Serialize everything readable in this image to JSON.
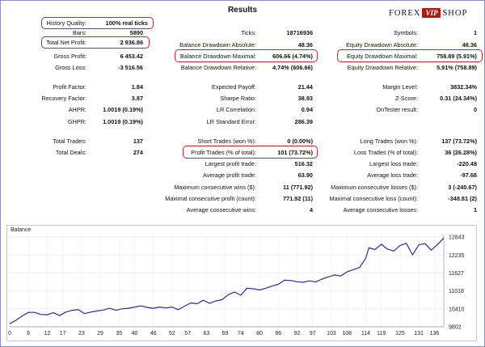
{
  "title": "Results",
  "logo": {
    "left": "FOREX",
    "badge": "VIP",
    "right": "SHOP"
  },
  "stats": [
    {
      "label": "History Quality:",
      "value": "100% real ticks"
    },
    {
      "label": "Bars:",
      "value": "5890"
    },
    {
      "label": "Total Net Profit:",
      "value": "2 936.86"
    },
    {
      "label": "Gross Profit:",
      "value": "6 453.42"
    },
    {
      "label": "Gross Loss:",
      "value": "-3 516.56"
    },
    {
      "label": "Ticks:",
      "value": "18716936"
    },
    {
      "label": "Balance Drawdown Absolute:",
      "value": "48.36"
    },
    {
      "label": "Balance Drawdown Maximal:",
      "value": "606.66 (4.74%)"
    },
    {
      "label": "Balance Drawdown Relative:",
      "value": "4.74% (606.66)"
    },
    {
      "label": "Symbols:",
      "value": "1"
    },
    {
      "label": "Equity Drawdown Absolute:",
      "value": "48.36"
    },
    {
      "label": "Equity Drawdown Maximal:",
      "value": "758.89 (5.91%)"
    },
    {
      "label": "Equity Drawdown Relative:",
      "value": "5.91% (758.89)"
    },
    {
      "label": "Profit Factor:",
      "value": "1.84"
    },
    {
      "label": "Recovery Factor:",
      "value": "3.87"
    },
    {
      "label": "AHPR:",
      "value": "1.0019 (0.19%)"
    },
    {
      "label": "GHPR:",
      "value": "1.0019 (0.19%)"
    },
    {
      "label": "Expected Payoff:",
      "value": "21.44"
    },
    {
      "label": "Sharpe Ratio:",
      "value": "38.93"
    },
    {
      "label": "LR Correlation:",
      "value": "0.94"
    },
    {
      "label": "LR Standard Error:",
      "value": "286.39"
    },
    {
      "label": "Margin Level:",
      "value": "3832.34%"
    },
    {
      "label": "Z-Score:",
      "value": "0.31 (24.34%)"
    },
    {
      "label": "OnTester result:",
      "value": "0"
    },
    {
      "label": "Total Trades:",
      "value": "137"
    },
    {
      "label": "Total Deals:",
      "value": "274"
    },
    {
      "label": "Short Trades (won %):",
      "value": "0 (0.00%)"
    },
    {
      "label": "Profit Trades (% of total):",
      "value": "101 (73.72%)"
    },
    {
      "label": "Largest profit trade:",
      "value": "516.32"
    },
    {
      "label": "Average profit trade:",
      "value": "63.90"
    },
    {
      "label": "Maximum consecutive wins ($):",
      "value": "11 (771.92)"
    },
    {
      "label": "Maximal consecutive profit (count):",
      "value": "771.92 (11)"
    },
    {
      "label": "Average consecutive wins:",
      "value": "4"
    },
    {
      "label": "Long Trades (won %):",
      "value": "137 (73.72%)"
    },
    {
      "label": "Loss Trades (% of total):",
      "value": "36 (26.28%)"
    },
    {
      "label": "Largest loss trade:",
      "value": "-220.48"
    },
    {
      "label": "Average loss trade:",
      "value": "-97.68"
    },
    {
      "label": "Maximum consecutive losses ($):",
      "value": "3 (-240.67)"
    },
    {
      "label": "Maximal consecutive loss (count):",
      "value": "-348.81 (2)"
    },
    {
      "label": "Average consecutive losses:",
      "value": "1"
    }
  ],
  "highlight_color": "#c0262c",
  "chart_data": {
    "type": "line",
    "title": "Balance",
    "xlabel": "",
    "ylabel": "",
    "x_ticks": [
      "0",
      "6",
      "12",
      "17",
      "23",
      "29",
      "35",
      "40",
      "46",
      "52",
      "57",
      "63",
      "69",
      "74",
      "80",
      "86",
      "92",
      "97",
      "103",
      "108",
      "114",
      "119",
      "125",
      "131",
      "136"
    ],
    "y_ticks": [
      "9802",
      "10410",
      "11018",
      "11627",
      "12235",
      "12843"
    ],
    "xlim": [
      0,
      139
    ],
    "ylim": [
      9802,
      12900
    ],
    "color": "#2a2f8f",
    "x": [
      0,
      2,
      4,
      6,
      8,
      10,
      12,
      14,
      16,
      18,
      20,
      22,
      24,
      26,
      28,
      30,
      32,
      34,
      36,
      38,
      40,
      42,
      44,
      46,
      48,
      50,
      52,
      54,
      56,
      58,
      60,
      62,
      64,
      66,
      68,
      70,
      72,
      74,
      76,
      78,
      80,
      82,
      84,
      86,
      88,
      90,
      92,
      94,
      96,
      98,
      100,
      102,
      104,
      106,
      108,
      110,
      112,
      114,
      115,
      117,
      119,
      121,
      123,
      125,
      127,
      129,
      131,
      133,
      135,
      137,
      139
    ],
    "y": [
      9905,
      10020,
      10170,
      10290,
      10290,
      10220,
      10210,
      10280,
      10180,
      10300,
      10360,
      10380,
      10250,
      10300,
      10340,
      10370,
      10430,
      10360,
      10410,
      10430,
      10470,
      10510,
      10460,
      10430,
      10470,
      10440,
      10470,
      10380,
      10500,
      10610,
      10580,
      10700,
      10600,
      10680,
      10720,
      10890,
      10980,
      10870,
      11110,
      11090,
      11050,
      11110,
      11180,
      11240,
      11380,
      11370,
      11330,
      11310,
      11360,
      11320,
      11420,
      11490,
      11560,
      11520,
      11660,
      11740,
      11810,
      12120,
      12480,
      12420,
      12600,
      12430,
      12370,
      12560,
      12630,
      12240,
      12580,
      12620,
      12400,
      12590,
      12810
    ]
  }
}
